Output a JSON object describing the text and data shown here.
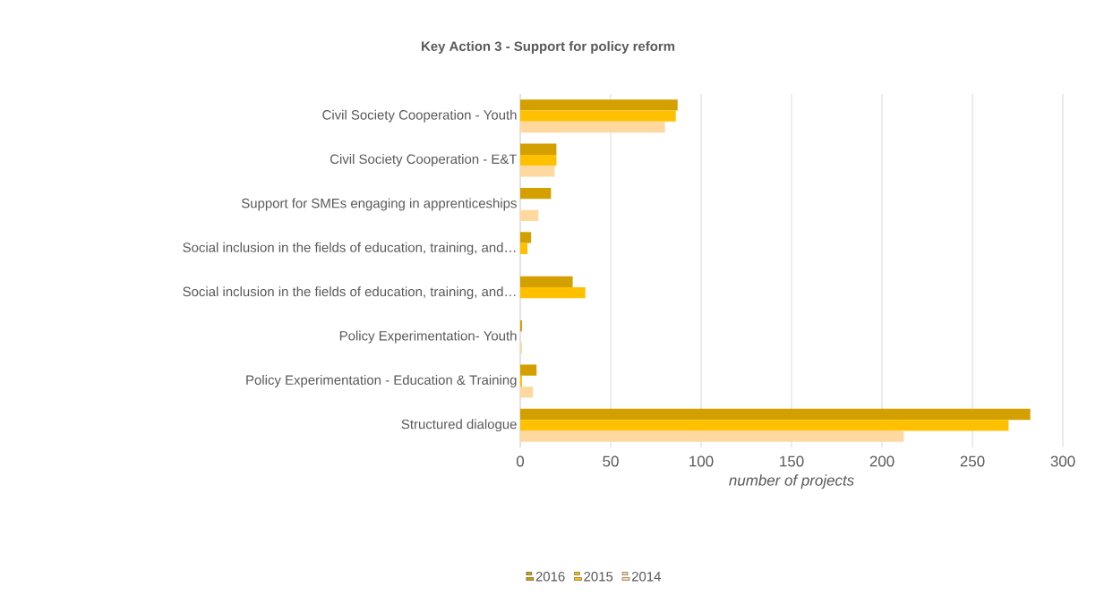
{
  "chart_data": {
    "type": "bar",
    "orientation": "horizontal",
    "title": "Key Action 3 - Support for policy reform",
    "xlabel": "number of projects",
    "categories": [
      "Civil Society Cooperation - Youth",
      "Civil Society Cooperation - E&T",
      "Support for SMEs engaging in apprenticeships",
      "Social inclusion in the fields of education, training, and…",
      "Social inclusion in the fields of education, training, and…",
      "Policy Experimentation- Youth",
      "Policy Experimentation - Education & Training",
      "Structured dialogue"
    ],
    "series": [
      {
        "name": "2016",
        "color": "#d4a000",
        "values": [
          87,
          20,
          17,
          6,
          29,
          1,
          9,
          282
        ]
      },
      {
        "name": "2015",
        "color": "#ffc000",
        "values": [
          86,
          20,
          null,
          4,
          36,
          null,
          1,
          270
        ]
      },
      {
        "name": "2014",
        "color": "#ffd8a0",
        "values": [
          80,
          19,
          10,
          null,
          null,
          1,
          7,
          212
        ]
      }
    ],
    "xlim": [
      0,
      300
    ],
    "xticks": [
      0,
      50,
      100,
      150,
      200,
      250,
      300
    ],
    "grid": "x",
    "legend": "bottom"
  }
}
